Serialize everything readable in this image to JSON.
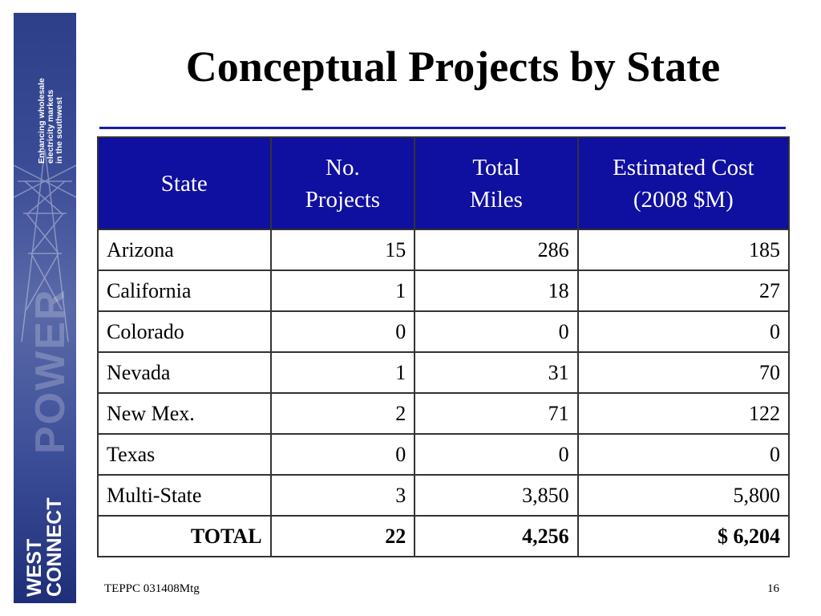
{
  "brand": {
    "tagline_lines": [
      "Enhancing wholesale",
      "electricity markets",
      "in the southwest"
    ],
    "watermark": "POWER",
    "logo_lines": [
      "WEST",
      "CONNECT"
    ],
    "band_color": "#2e3f8a"
  },
  "slide": {
    "title": "Conceptual Projects by State",
    "rule_color": "#1a1aa8"
  },
  "table": {
    "header_color": "#0f0fa0",
    "headers": {
      "state": "State",
      "projects": [
        "No.",
        "Projects"
      ],
      "miles": [
        "Total",
        "Miles"
      ],
      "cost": [
        "Estimated Cost",
        "(2008 $M)"
      ]
    },
    "rows": [
      {
        "state": "Arizona",
        "projects": "15",
        "miles": "286",
        "cost": "185"
      },
      {
        "state": "California",
        "projects": "1",
        "miles": "18",
        "cost": "27"
      },
      {
        "state": "Colorado",
        "projects": "0",
        "miles": "0",
        "cost": "0"
      },
      {
        "state": "Nevada",
        "projects": "1",
        "miles": "31",
        "cost": "70"
      },
      {
        "state": "New Mex.",
        "projects": "2",
        "miles": "71",
        "cost": "122"
      },
      {
        "state": "Texas",
        "projects": "0",
        "miles": "0",
        "cost": "0"
      },
      {
        "state": "Multi-State",
        "projects": "3",
        "miles": "3,850",
        "cost": "5,800"
      }
    ],
    "total": {
      "state": "TOTAL",
      "projects": "22",
      "miles": "4,256",
      "cost": "$ 6,204"
    }
  },
  "footer": {
    "meeting": "TEPPC 031408Mtg",
    "page_number": "16"
  }
}
